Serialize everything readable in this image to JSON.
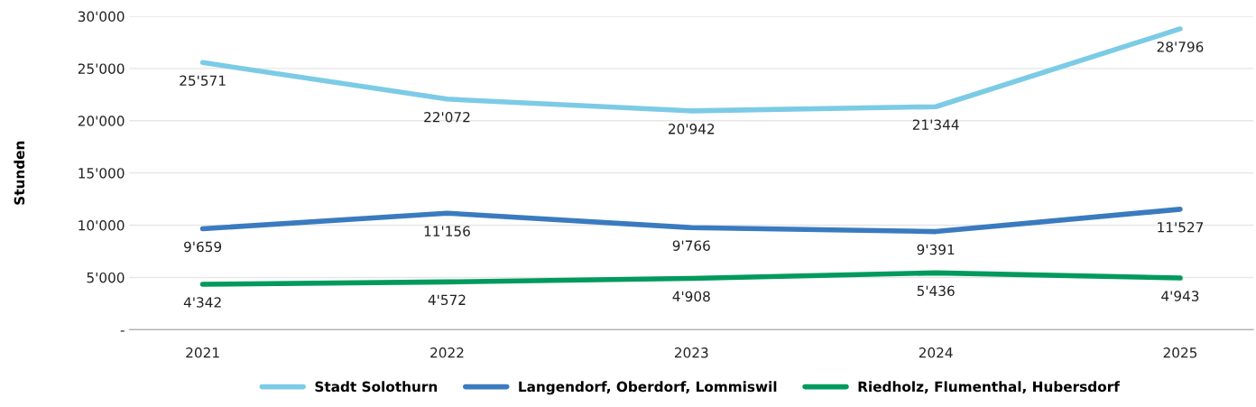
{
  "chart_data": {
    "type": "line",
    "ylabel": "Stunden",
    "categories": [
      "2021",
      "2022",
      "2023",
      "2024",
      "2025"
    ],
    "series": [
      {
        "name": "Stadt Solothurn",
        "color": "#7ccbe6",
        "values": [
          25571,
          22072,
          20942,
          21344,
          28796
        ],
        "value_labels": [
          "25'571",
          "22'072",
          "20'942",
          "21'344",
          "28'796"
        ]
      },
      {
        "name": "Langendorf, Oberdorf, Lommiswil",
        "color": "#3a7bbf",
        "values": [
          9659,
          11156,
          9766,
          9391,
          11527
        ],
        "value_labels": [
          "9'659",
          "11'156",
          "9'766",
          "9'391",
          "11'527"
        ]
      },
      {
        "name": "Riedholz, Flumenthal, Hubersdorf",
        "color": "#009a5e",
        "values": [
          4342,
          4572,
          4908,
          5436,
          4943
        ],
        "value_labels": [
          "4'342",
          "4'572",
          "4'908",
          "5'436",
          "4'943"
        ]
      }
    ],
    "ylim": [
      0,
      30000
    ],
    "yticks": [
      {
        "value": 0,
        "label": "-"
      },
      {
        "value": 5000,
        "label": "5'000"
      },
      {
        "value": 10000,
        "label": "10'000"
      },
      {
        "value": 15000,
        "label": "15'000"
      },
      {
        "value": 20000,
        "label": "20'000"
      },
      {
        "value": 25000,
        "label": "25'000"
      },
      {
        "value": 30000,
        "label": "30'000"
      }
    ],
    "grid": "y",
    "legend": "bottom",
    "marker": "none",
    "line_style": "solid"
  }
}
